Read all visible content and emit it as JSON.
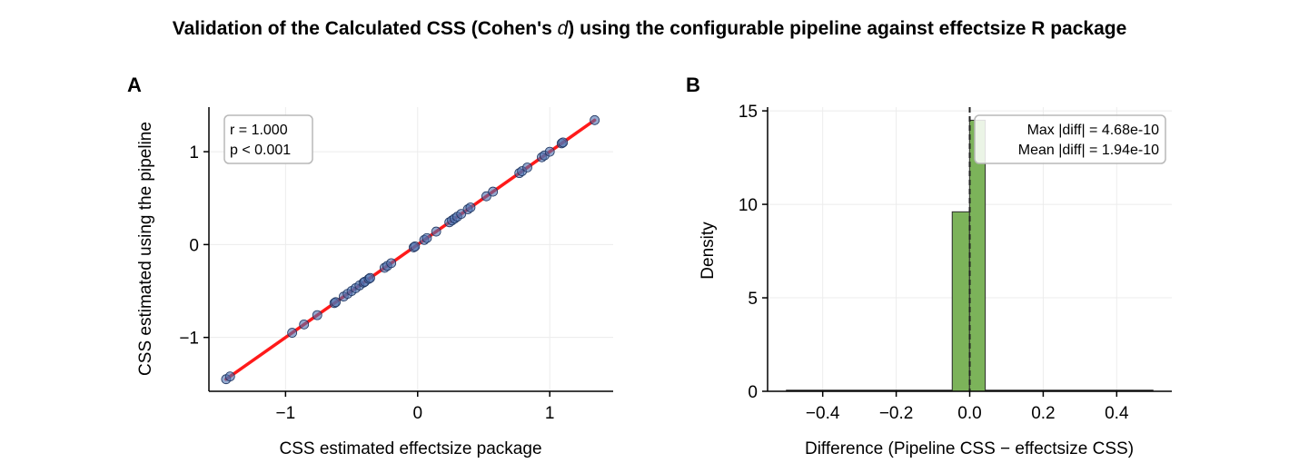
{
  "figure": {
    "title_prefix": "Validation of the Calculated CSS (Cohen's ",
    "title_symbol": "d",
    "title_suffix": ") using the configurable pipeline against effectsize R package"
  },
  "chart_data": [
    {
      "type": "scatter",
      "panel_label": "A",
      "xlabel": "CSS estimated effectsize package",
      "ylabel": "CSS estimated using the pipeline",
      "xlim": [
        -1.58,
        1.48
      ],
      "ylim": [
        -1.58,
        1.48
      ],
      "xticks": [
        -1,
        0,
        1
      ],
      "yticks": [
        -1,
        0,
        1
      ],
      "xtick_labels": [
        "−1",
        "0",
        "1"
      ],
      "ytick_labels": [
        "−1",
        "0",
        "1"
      ],
      "grid": true,
      "point_color": "#4c72b0",
      "fit_line_color": "#ff1a1a",
      "fit_line": {
        "x": [
          -1.45,
          1.34
        ],
        "y": [
          -1.45,
          1.34
        ]
      },
      "annotation": [
        "r = 1.000",
        "p < 0.001"
      ],
      "annotation_position": "top-left",
      "points": {
        "x": [
          -1.45,
          -1.42,
          -0.95,
          -0.86,
          -0.76,
          -0.63,
          -0.62,
          -0.56,
          -0.53,
          -0.5,
          -0.47,
          -0.44,
          -0.41,
          -0.4,
          -0.37,
          -0.36,
          -0.25,
          -0.23,
          -0.2,
          -0.03,
          -0.02,
          0.05,
          0.07,
          0.14,
          0.24,
          0.26,
          0.28,
          0.3,
          0.33,
          0.38,
          0.4,
          0.52,
          0.57,
          0.77,
          0.79,
          0.83,
          0.94,
          0.96,
          1.0,
          1.09,
          1.1,
          1.34
        ],
        "y": [
          -1.45,
          -1.42,
          -0.95,
          -0.86,
          -0.76,
          -0.63,
          -0.62,
          -0.56,
          -0.53,
          -0.5,
          -0.47,
          -0.44,
          -0.41,
          -0.4,
          -0.37,
          -0.36,
          -0.25,
          -0.23,
          -0.2,
          -0.03,
          -0.02,
          0.05,
          0.07,
          0.14,
          0.24,
          0.26,
          0.28,
          0.3,
          0.33,
          0.38,
          0.4,
          0.52,
          0.57,
          0.77,
          0.79,
          0.83,
          0.94,
          0.96,
          1.0,
          1.09,
          1.1,
          1.34
        ]
      }
    },
    {
      "type": "bar",
      "subtype": "histogram",
      "panel_label": "B",
      "xlabel": "Difference (Pipeline CSS − effectsize CSS)",
      "ylabel": "Density",
      "xlim": [
        -0.55,
        0.55
      ],
      "ylim": [
        0,
        15.2
      ],
      "xticks": [
        -0.4,
        -0.2,
        0.0,
        0.2,
        0.4
      ],
      "xtick_labels": [
        "−0.4",
        "−0.2",
        "0.0",
        "0.2",
        "0.4"
      ],
      "yticks": [
        0,
        5,
        10,
        15
      ],
      "ytick_labels": [
        "0",
        "5",
        "10",
        "15"
      ],
      "grid": true,
      "bar_color": "#7cb35a",
      "bins": [
        {
          "x0": -0.5,
          "x1": -0.0476,
          "density": 0
        },
        {
          "x0": -0.0476,
          "x1": -0.0005,
          "density": 9.6
        },
        {
          "x0": -0.0005,
          "x1": 0.0423,
          "density": 14.5
        },
        {
          "x0": 0.0423,
          "x1": 0.5,
          "density": 0
        }
      ],
      "reference_line_x": 0,
      "annotation": [
        "Max |diff| = 4.68e-10",
        "Mean |diff| = 1.94e-10"
      ],
      "annotation_position": "top-right"
    }
  ]
}
